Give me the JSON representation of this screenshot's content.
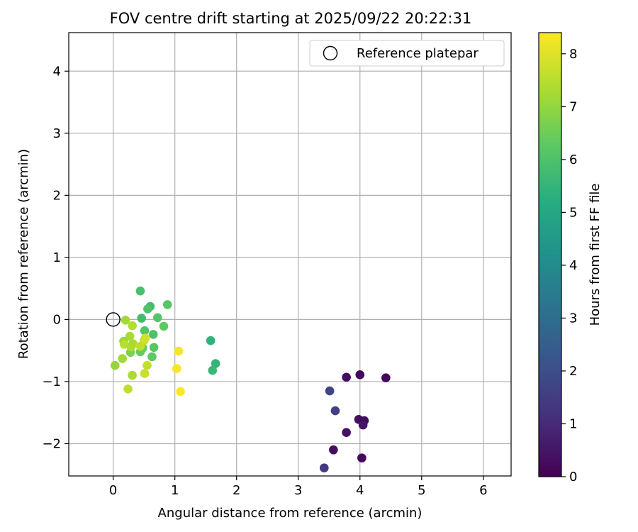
{
  "chart_data": {
    "type": "scatter",
    "title": "FOV centre drift starting at 2025/09/22 20:22:31",
    "xlabel": "Angular distance from reference (arcmin)",
    "ylabel": "Rotation from reference (arcmin)",
    "xlim": [
      -0.72,
      6.45
    ],
    "ylim": [
      -2.52,
      4.62
    ],
    "xticks": [
      0,
      1,
      2,
      3,
      4,
      5,
      6
    ],
    "xtick_labels": [
      "0",
      "1",
      "2",
      "3",
      "4",
      "5",
      "6"
    ],
    "yticks": [
      -2,
      -1,
      0,
      1,
      2,
      3,
      4
    ],
    "ytick_labels": [
      "−2",
      "−1",
      "0",
      "1",
      "2",
      "3",
      "4"
    ],
    "grid": true,
    "legend": {
      "position": "top-right",
      "entries": [
        "Reference platepar"
      ]
    },
    "reference_point": {
      "x": 0,
      "y": 0,
      "label": "Reference platepar"
    },
    "colorbar": {
      "label": "Hours from first FF file",
      "range": [
        0,
        8.4
      ],
      "ticks": [
        0,
        1,
        2,
        3,
        4,
        5,
        6,
        7,
        8
      ],
      "tick_labels": [
        "0",
        "1",
        "2",
        "3",
        "4",
        "5",
        "6",
        "7",
        "8"
      ],
      "colormap": "viridis"
    },
    "points": [
      {
        "x": 3.42,
        "y": -2.39,
        "hours": 1.4
      },
      {
        "x": 3.57,
        "y": -2.1,
        "hours": 0.3
      },
      {
        "x": 4.03,
        "y": -2.23,
        "hours": 0.2
      },
      {
        "x": 3.78,
        "y": -1.82,
        "hours": 0.4
      },
      {
        "x": 3.98,
        "y": -1.61,
        "hours": 0.3
      },
      {
        "x": 4.07,
        "y": -1.63,
        "hours": 0.2
      },
      {
        "x": 4.05,
        "y": -1.7,
        "hours": 0.5
      },
      {
        "x": 3.6,
        "y": -1.47,
        "hours": 1.6
      },
      {
        "x": 3.51,
        "y": -1.15,
        "hours": 1.7
      },
      {
        "x": 3.78,
        "y": -0.93,
        "hours": 0.3
      },
      {
        "x": 4.0,
        "y": -0.89,
        "hours": 0.2
      },
      {
        "x": 4.42,
        "y": -0.94,
        "hours": 0.2
      },
      {
        "x": 1.58,
        "y": -0.34,
        "hours": 5.4
      },
      {
        "x": 1.66,
        "y": -0.71,
        "hours": 5.5
      },
      {
        "x": 1.61,
        "y": -0.82,
        "hours": 5.6
      },
      {
        "x": 0.44,
        "y": 0.46,
        "hours": 5.9
      },
      {
        "x": 0.88,
        "y": 0.24,
        "hours": 6.2
      },
      {
        "x": 0.6,
        "y": 0.21,
        "hours": 5.8
      },
      {
        "x": 0.56,
        "y": 0.17,
        "hours": 6.0
      },
      {
        "x": 0.72,
        "y": 0.03,
        "hours": 6.1
      },
      {
        "x": 0.46,
        "y": 0.02,
        "hours": 5.8
      },
      {
        "x": 0.82,
        "y": -0.11,
        "hours": 6.3
      },
      {
        "x": 0.65,
        "y": -0.24,
        "hours": 6.0
      },
      {
        "x": 0.51,
        "y": -0.18,
        "hours": 6.1
      },
      {
        "x": 0.66,
        "y": -0.45,
        "hours": 6.2
      },
      {
        "x": 0.63,
        "y": -0.6,
        "hours": 6.3
      },
      {
        "x": 0.44,
        "y": -0.52,
        "hours": 6.4
      },
      {
        "x": 0.48,
        "y": -0.46,
        "hours": 6.4
      },
      {
        "x": 0.28,
        "y": -0.53,
        "hours": 6.7
      },
      {
        "x": 0.2,
        "y": -0.01,
        "hours": 7.2
      },
      {
        "x": 0.31,
        "y": -0.1,
        "hours": 7.4
      },
      {
        "x": 0.27,
        "y": -0.27,
        "hours": 7.3
      },
      {
        "x": 0.17,
        "y": -0.35,
        "hours": 7.1
      },
      {
        "x": 0.18,
        "y": -0.4,
        "hours": 7.5
      },
      {
        "x": 0.29,
        "y": -0.44,
        "hours": 7.4
      },
      {
        "x": 0.32,
        "y": -0.39,
        "hours": 7.3
      },
      {
        "x": 0.44,
        "y": -0.43,
        "hours": 7.6
      },
      {
        "x": 0.5,
        "y": -0.34,
        "hours": 7.7
      },
      {
        "x": 0.52,
        "y": -0.3,
        "hours": 7.8
      },
      {
        "x": 0.15,
        "y": -0.63,
        "hours": 7.2
      },
      {
        "x": 0.03,
        "y": -0.74,
        "hours": 7.0
      },
      {
        "x": 0.55,
        "y": -0.74,
        "hours": 7.6
      },
      {
        "x": 0.51,
        "y": -0.87,
        "hours": 7.7
      },
      {
        "x": 0.31,
        "y": -0.9,
        "hours": 7.3
      },
      {
        "x": 0.24,
        "y": -1.12,
        "hours": 7.6
      },
      {
        "x": 1.06,
        "y": -0.51,
        "hours": 8.3
      },
      {
        "x": 1.03,
        "y": -0.79,
        "hours": 8.3
      },
      {
        "x": 1.09,
        "y": -1.16,
        "hours": 8.4
      }
    ]
  }
}
